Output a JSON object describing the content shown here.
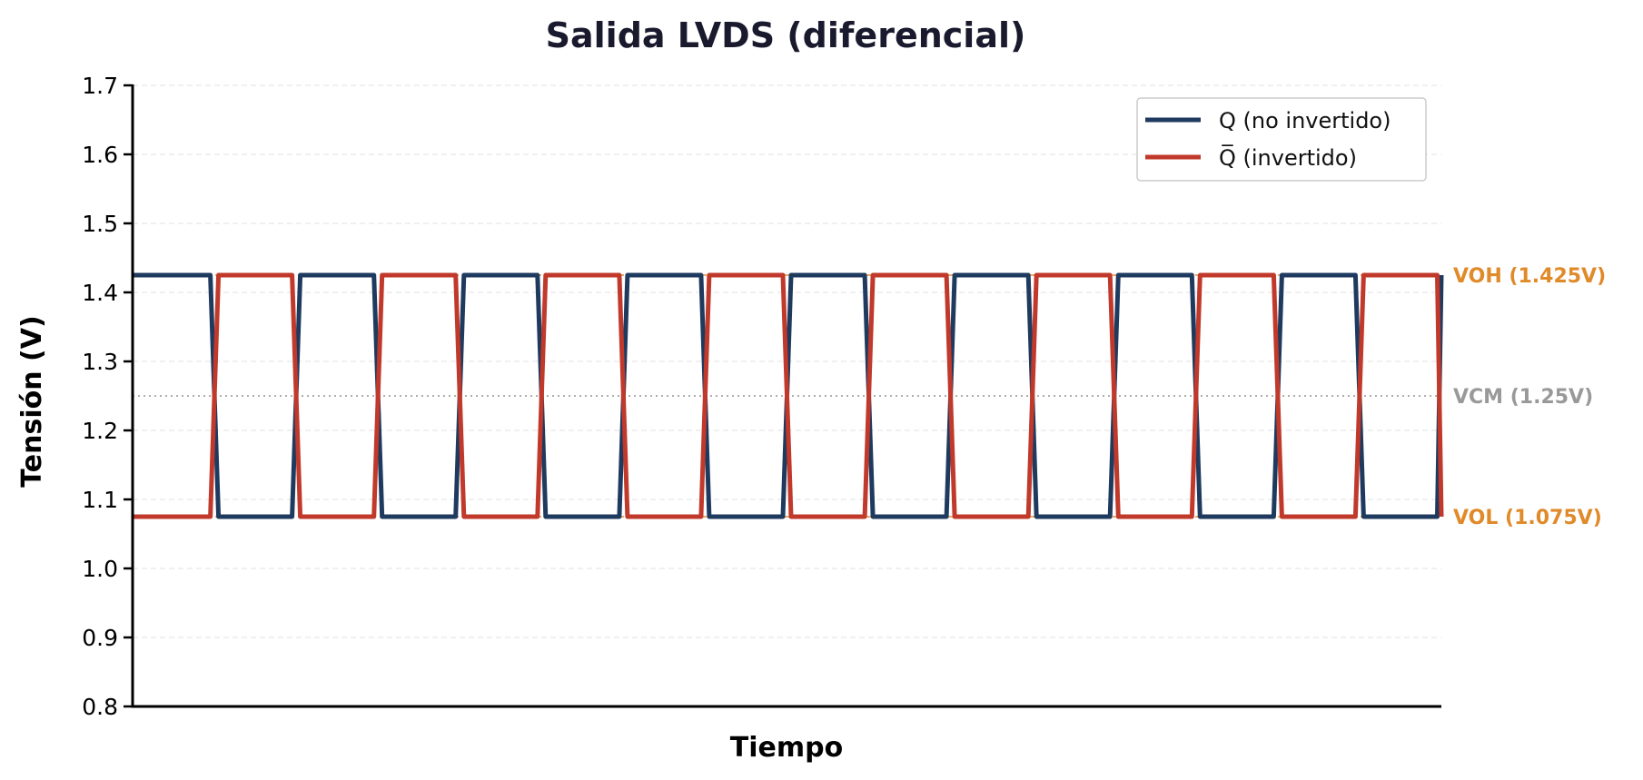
{
  "chart_data": {
    "type": "line",
    "title": "Salida LVDS (diferencial)",
    "xlabel": "Tiempo",
    "ylabel": "Tensión (V)",
    "xlim": [
      0,
      16
    ],
    "ylim": [
      0.8,
      1.7
    ],
    "yticks": [
      0.8,
      0.9,
      1.0,
      1.1,
      1.2,
      1.3,
      1.4,
      1.5,
      1.6,
      1.7
    ],
    "ytick_labels": [
      "0.8",
      "0.9",
      "1.0",
      "1.1",
      "1.2",
      "1.3",
      "1.4",
      "1.5",
      "1.6",
      "1.7"
    ],
    "xticks_visible": false,
    "grid": {
      "y": true,
      "style": "dashed",
      "color": "#e6e6e6"
    },
    "bit_period": 1,
    "transition_width": 0.1,
    "series": [
      {
        "name": "Q (no invertido)",
        "color": "#1f3a5f",
        "line_width": 5,
        "bits": [
          1,
          0,
          1,
          0,
          1,
          0,
          1,
          0,
          1,
          0,
          1,
          0,
          1,
          0,
          1,
          0
        ],
        "high": 1.425,
        "low": 1.075
      },
      {
        "name": "Q̅ (invertido)",
        "color": "#c0392b",
        "line_width": 5,
        "bits": [
          0,
          1,
          0,
          1,
          0,
          1,
          0,
          1,
          0,
          1,
          0,
          1,
          0,
          1,
          0,
          1
        ],
        "high": 1.425,
        "low": 1.075
      }
    ],
    "reference_lines": [
      {
        "name": "VOH",
        "label": "VOH (1.425V)",
        "y": 1.425,
        "color": "#e08a2a",
        "style": "dashed"
      },
      {
        "name": "VCM",
        "label": "VCM (1.25V)",
        "y": 1.25,
        "color": "#999999",
        "style": "dotted"
      },
      {
        "name": "VOL",
        "label": "VOL (1.075V)",
        "y": 1.075,
        "color": "#e08a2a",
        "style": "dashed"
      }
    ],
    "legend": {
      "position": "upper right",
      "entries": [
        "Q (no invertido)",
        "Q̅ (invertido)"
      ]
    }
  }
}
